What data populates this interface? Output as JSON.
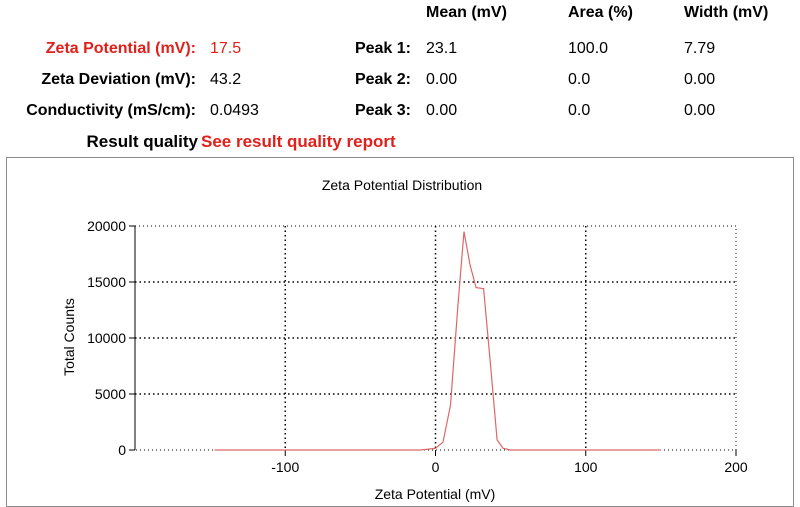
{
  "summary": {
    "columns": [
      "Mean (mV)",
      "Area (%)",
      "Width (mV)"
    ],
    "zeta_potential": {
      "label": "Zeta Potential (mV):",
      "value": "17.5"
    },
    "zeta_deviation": {
      "label": "Zeta Deviation (mV):",
      "value": "43.2"
    },
    "conductivity": {
      "label": "Conductivity (mS/cm):",
      "value": "0.0493"
    },
    "peaks": [
      {
        "label": "Peak 1:",
        "mean": "23.1",
        "area": "100.0",
        "width": "7.79"
      },
      {
        "label": "Peak 2:",
        "mean": "0.00",
        "area": "0.0",
        "width": "0.00"
      },
      {
        "label": "Peak 3:",
        "mean": "0.00",
        "area": "0.0",
        "width": "0.00"
      }
    ],
    "result_quality": {
      "label": "Result quality",
      "link": "See result quality report"
    }
  },
  "colors": {
    "accent_red": "#e0201b",
    "series_line": "#e06666"
  },
  "chart_data": {
    "type": "line",
    "title": "Zeta Potential Distribution",
    "xlabel": "Zeta Potential (mV)",
    "ylabel": "Total Counts",
    "xlim": [
      -200,
      200
    ],
    "ylim": [
      0,
      20000
    ],
    "x_ticks": [
      -100,
      0,
      100,
      200
    ],
    "y_ticks": [
      0,
      5000,
      10000,
      15000,
      20000
    ],
    "grid": true,
    "series": [
      {
        "x": [
          -147,
          -100,
          -50,
          -10,
          0,
          5,
          10,
          15,
          19,
          23,
          27,
          32,
          37,
          41,
          45,
          50,
          100,
          150
        ],
        "y": [
          0,
          0,
          0,
          0,
          150,
          700,
          4000,
          13000,
          19500,
          16500,
          14500,
          14400,
          7000,
          900,
          150,
          0,
          0,
          0
        ]
      }
    ]
  }
}
